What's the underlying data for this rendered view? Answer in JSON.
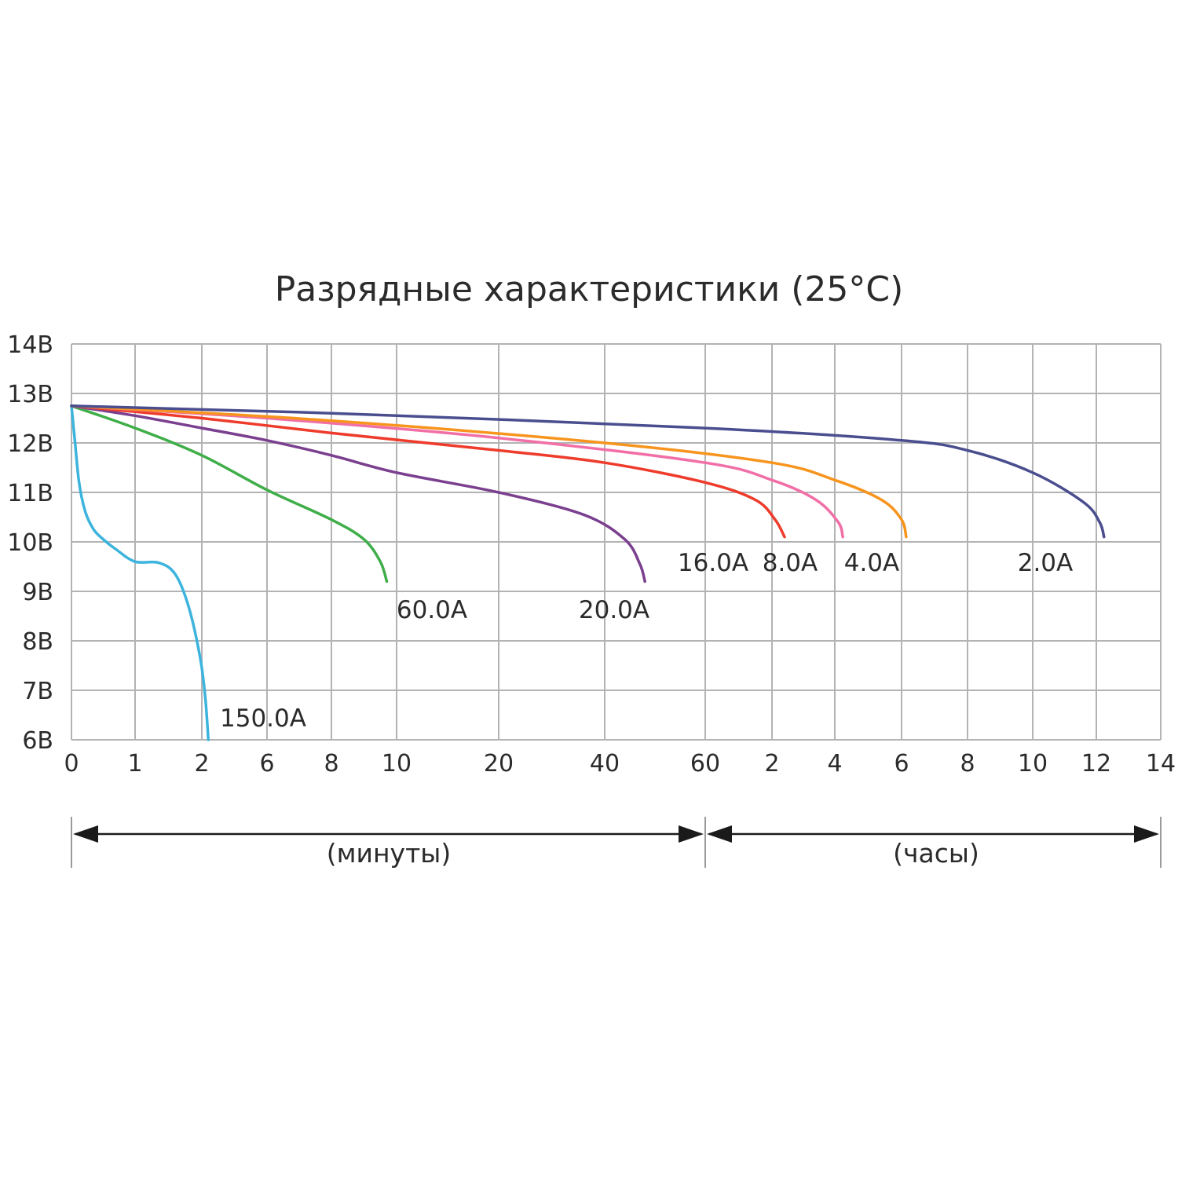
{
  "chart_data": {
    "type": "line",
    "title": "Разрядные характеристики (25°C)",
    "ylabel": "",
    "xlabel": "",
    "ylim": [
      6,
      14
    ],
    "y_ticks": [
      "6В",
      "7В",
      "8В",
      "9В",
      "10В",
      "11В",
      "12В",
      "13В",
      "14В"
    ],
    "x_ticks": [
      "0",
      "1",
      "2",
      "6",
      "8",
      "10",
      "20",
      "40",
      "60",
      "2",
      "4",
      "6",
      "8",
      "10",
      "12",
      "14"
    ],
    "x_scale_note": "piecewise time axis: tick index 0..15",
    "sections": [
      {
        "label": "(минуты)",
        "from_tick": 0,
        "to_tick": 8
      },
      {
        "label": "(часы)",
        "from_tick": 8,
        "to_tick": 15
      }
    ],
    "series": [
      {
        "name": "150.0A",
        "color": "#3db4dd",
        "points": [
          [
            0,
            12.75
          ],
          [
            0.05,
            12.1
          ],
          [
            0.12,
            11.2
          ],
          [
            0.22,
            10.6
          ],
          [
            0.35,
            10.25
          ],
          [
            0.5,
            10.05
          ],
          [
            0.7,
            9.85
          ],
          [
            1.0,
            9.6
          ],
          [
            1.35,
            9.58
          ],
          [
            1.6,
            9.35
          ],
          [
            1.8,
            8.7
          ],
          [
            1.97,
            7.7
          ],
          [
            2.05,
            6.9
          ],
          [
            2.1,
            6.0
          ]
        ]
      },
      {
        "name": "60.0A",
        "color": "#3fae49",
        "points": [
          [
            0,
            12.75
          ],
          [
            1,
            12.3
          ],
          [
            2,
            11.75
          ],
          [
            3,
            11.05
          ],
          [
            4,
            10.45
          ],
          [
            4.5,
            10.05
          ],
          [
            4.75,
            9.6
          ],
          [
            4.85,
            9.2
          ]
        ]
      },
      {
        "name": "20.0A",
        "color": "#7b3f8f",
        "points": [
          [
            0,
            12.75
          ],
          [
            1,
            12.55
          ],
          [
            2,
            12.3
          ],
          [
            3,
            12.05
          ],
          [
            4,
            11.75
          ],
          [
            5,
            11.4
          ],
          [
            6,
            11.0
          ],
          [
            6.8,
            10.55
          ],
          [
            7.2,
            10.05
          ],
          [
            7.35,
            9.55
          ],
          [
            7.4,
            9.2
          ]
        ]
      },
      {
        "name": "16.0A",
        "color": "#ee3b2b",
        "points": [
          [
            0,
            12.75
          ],
          [
            2,
            12.5
          ],
          [
            4,
            12.2
          ],
          [
            6,
            11.85
          ],
          [
            7,
            11.6
          ],
          [
            8,
            11.2
          ],
          [
            8.75,
            10.85
          ],
          [
            9.05,
            10.45
          ],
          [
            9.2,
            10.1
          ]
        ]
      },
      {
        "name": "8.0A",
        "color": "#f16fa6",
        "points": [
          [
            0,
            12.75
          ],
          [
            3,
            12.5
          ],
          [
            6,
            12.1
          ],
          [
            8,
            11.6
          ],
          [
            9,
            11.25
          ],
          [
            9.7,
            10.85
          ],
          [
            10.05,
            10.4
          ],
          [
            10.12,
            10.1
          ]
        ]
      },
      {
        "name": "4.0A",
        "color": "#f7941d",
        "points": [
          [
            0,
            12.75
          ],
          [
            4,
            12.45
          ],
          [
            7,
            12.0
          ],
          [
            9,
            11.6
          ],
          [
            10,
            11.25
          ],
          [
            10.7,
            10.85
          ],
          [
            11,
            10.45
          ],
          [
            11.07,
            10.1
          ]
        ]
      },
      {
        "name": "2.0A",
        "color": "#4a4e8f",
        "points": [
          [
            0,
            12.75
          ],
          [
            4,
            12.6
          ],
          [
            8,
            12.3
          ],
          [
            11,
            12.05
          ],
          [
            12,
            11.85
          ],
          [
            13,
            11.4
          ],
          [
            13.8,
            10.8
          ],
          [
            14.05,
            10.4
          ],
          [
            14.12,
            10.1
          ]
        ]
      }
    ],
    "curve_labels": [
      "150.0A",
      "60.0A",
      "20.0A",
      "16.0A",
      "8.0A",
      "4.0A",
      "2.0A"
    ]
  }
}
